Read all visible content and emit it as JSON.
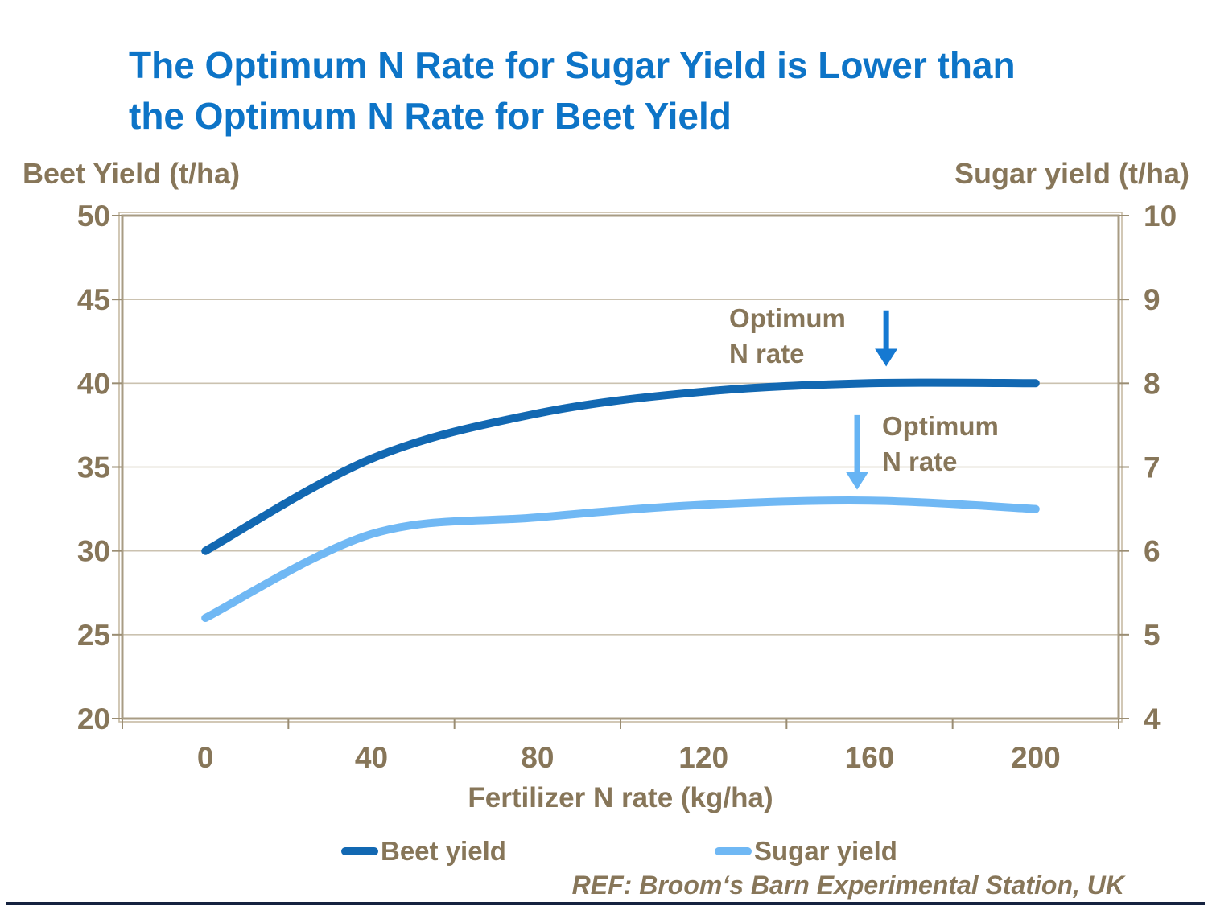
{
  "page": {
    "background": "#ffffff",
    "bottom_rule_color": "#15223f"
  },
  "title": {
    "line1": "The Optimum N Rate for Sugar Yield is Lower than",
    "line2": "the Optimum N Rate for Beet Yield",
    "color": "#0d74c7"
  },
  "axis_titles": {
    "left": "Beet Yield (t/ha)",
    "right": "Sugar yield (t/ha)"
  },
  "x_axis_title": "Fertilizer N rate (kg/ha)",
  "annotations": {
    "beet": {
      "line1": "Optimum",
      "line2": "N rate"
    },
    "sugar": {
      "line1": "Optimum",
      "line2": "N rate"
    }
  },
  "legend": {
    "items": [
      {
        "label": "Beet yield",
        "color": "#1268b2"
      },
      {
        "label": "Sugar yield",
        "color": "#70b8f4"
      }
    ]
  },
  "footer": {
    "reference": "REF: Broom‘s Barn Experimental Station, UK"
  },
  "chart_data": {
    "type": "line",
    "smoothed": true,
    "grid": true,
    "legend_position": "bottom",
    "title": "The Optimum N Rate for Sugar Yield is Lower than the Optimum N Rate for Beet Yield",
    "xlabel": "Fertilizer N rate (kg/ha)",
    "x": [
      0,
      40,
      80,
      120,
      160,
      200
    ],
    "x_tick_labels": [
      "0",
      "40",
      "80",
      "120",
      "160",
      "200"
    ],
    "left_axis": {
      "label": "Beet Yield (t/ha)",
      "min": 20,
      "max": 50,
      "ticks": [
        50,
        45,
        40,
        35,
        30,
        25,
        20
      ]
    },
    "right_axis": {
      "label": "Sugar yield (t/ha)",
      "min": 4,
      "max": 10,
      "ticks": [
        10,
        9,
        8,
        7,
        6,
        5,
        4
      ]
    },
    "series": [
      {
        "name": "Beet yield",
        "axis": "left",
        "color": "#1268b2",
        "values": [
          30,
          35.5,
          38.2,
          39.5,
          40,
          40
        ]
      },
      {
        "name": "Sugar yield",
        "axis": "right",
        "color": "#70b8f4",
        "values": [
          5.2,
          6.2,
          6.4,
          6.55,
          6.6,
          6.5
        ]
      }
    ],
    "annotations": [
      {
        "target": "Beet yield",
        "text": "Optimum N rate",
        "arrow": {
          "x_value": 164,
          "axis": "left",
          "y_from": 44.35,
          "y_to": 41.0,
          "color": "#1579d2"
        }
      },
      {
        "target": "Sugar yield",
        "text": "Optimum N rate",
        "arrow": {
          "x_value": 157,
          "axis": "right",
          "y_from": 7.62,
          "y_to": 6.73,
          "color": "#66b4f4"
        }
      }
    ],
    "style": {
      "grid_color": "#cbc2b0",
      "frame_color": "#a89c84",
      "frame_outer_color": "#c6bba4",
      "tick_color": "#9a8d73",
      "tick_label_color": "#877659",
      "line_width": 10
    }
  }
}
